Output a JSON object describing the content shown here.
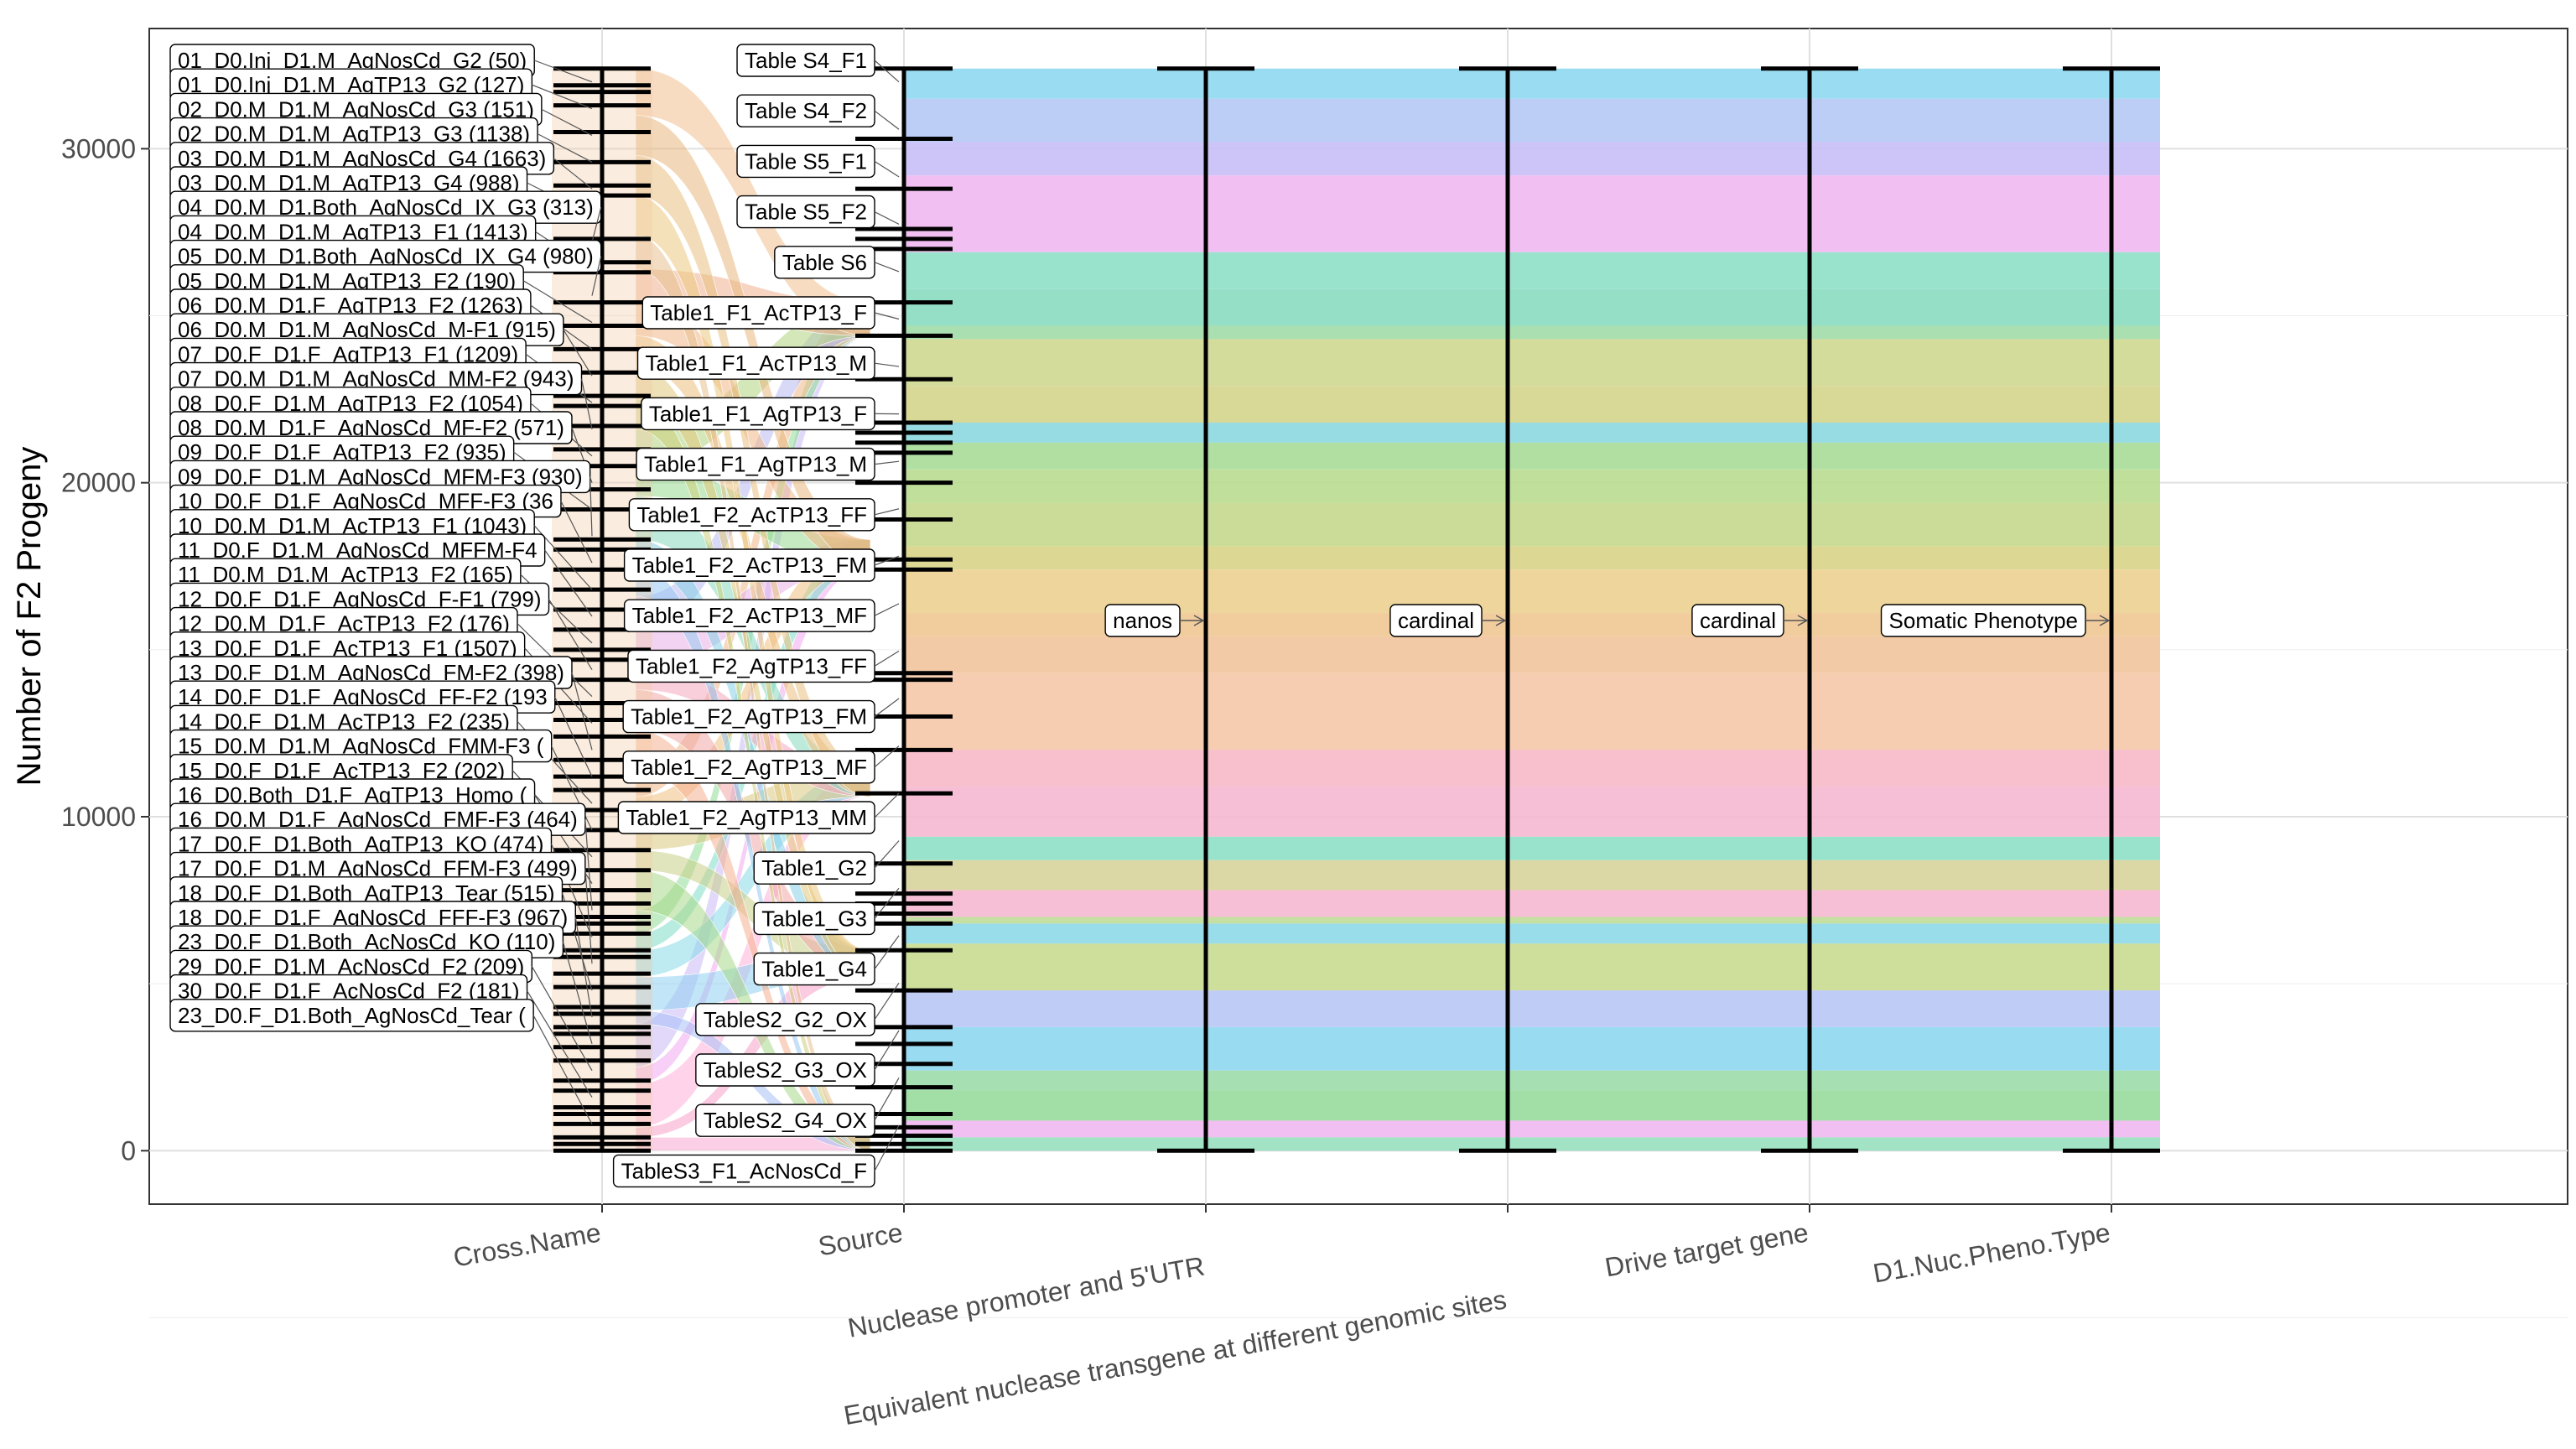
{
  "chart_data": {
    "type": "alluvial",
    "title": "",
    "ylabel": "Number of F2 Progeny",
    "ylim": [
      -1600,
      33600
    ],
    "yticks": [
      0,
      10000,
      20000,
      30000
    ],
    "grid": true,
    "axes": [
      "Cross.Name",
      "Source",
      "Nuclease promoter and 5'UTR",
      "Equivalent nuclease transgene at different genomic sites",
      "Drive target gene",
      "D1.Nuc.Pheno.Type"
    ],
    "cross_name_labels": [
      "01_D0.Inj_D1.M_AgNosCd_G2 (50)",
      "01_D0.Inj_D1.M_AgTP13_G2 (127)",
      "02_D0.M_D1.M_AgNosCd_G3 (151)",
      "02_D0.M_D1.M_AgTP13_G3 (1138)",
      "03_D0.M_D1.M_AgNosCd_G4 (1663)",
      "03_D0.M_D1.M_AgTP13_G4 (988)",
      "04_D0.M_D1.Both_AgNosCd_IX_G3 (313)",
      "04_D0.M_D1.M_AgTP13_F1 (1413)",
      "05_D0.M_D1.Both_AgNosCd_IX_G4 (980)",
      "05_D0.M_D1.M_AgTP13_F2 (190)",
      "06_D0.M_D1.F_AgTP13_F2 (1263)",
      "06_D0.M_D1.M_AgNosCd_M-F1 (915)",
      "07_D0.F_D1.F_AgTP13_F1 (1209)",
      "07_D0.M_D1.M_AgNosCd_MM-F2 (943)",
      "08_D0.F_D1.M_AgTP13_F2 (1054)",
      "08_D0.M_D1.F_AgNosCd_MF-F2 (571)",
      "09_D0.F_D1.F_AgTP13_F2 (935)",
      "09_D0.F_D1.M_AgNosCd_MFM-F3 (930)",
      "10_D0.F_D1.F_AgNosCd_MFF-F3 (36",
      "10_D0.M_D1.M_AcTP13_F1 (1043)",
      "11_D0.F_D1.M_AgNosCd_MFFM-F4",
      "11_D0.M_D1.M_AcTP13_F2 (165)",
      "12_D0.F_D1.F_AgNosCd_F-F1 (799)",
      "12_D0.M_D1.F_AcTP13_F2 (176)",
      "13_D0.F_D1.F_AcTP13_F1 (1507)",
      "13_D0.F_D1.M_AgNosCd_FM-F2 (398)",
      "14_D0.F_D1.F_AgNosCd_FF-F2 (193",
      "14_D0.F_D1.M_AcTP13_F2 (235)",
      "15_D0.M_D1.M_AgNosCd_FMM-F3 (",
      "15_D0.F_D1.F_AcTP13_F2 (202)",
      "16_D0.Both_D1.F_AgTP13_Homo (",
      "16_D0.M_D1.F_AgNosCd_FMF-F3 (464)",
      "17_D0.F_D1.Both_AgTP13_KO (474)",
      "17_D0.F_D1.M_AgNosCd_FFM-F3 (499)",
      "18_D0.F_D1.Both_AgTP13_Tear (515)",
      "18_D0.F_D1.F_AgNosCd_FFF-F3 (967)",
      "23_D0.F_D1.Both_AcNosCd_KO (110)",
      "29_D0.F_D1.M_AcNosCd_F2 (209)",
      "30_D0.F_D1.F_AcNosCd_F2 (181)",
      "23_D0.F_D1.Both_AgNosCd_Tear ("
    ],
    "source_labels": [
      "Table S4_F1",
      "Table S4_F2",
      "Table S5_F1",
      "Table S5_F2",
      "Table S6",
      "Table1_F1_AcTP13_F",
      "Table1_F1_AcTP13_M",
      "Table1_F1_AgTP13_F",
      "Table1_F1_AgTP13_M",
      "Table1_F2_AcTP13_FF",
      "Table1_F2_AcTP13_FM",
      "Table1_F2_AcTP13_MF",
      "Table1_F2_AgTP13_FF",
      "Table1_F2_AgTP13_FM",
      "Table1_F2_AgTP13_MF",
      "Table1_F2_AgTP13_MM",
      "Table1_G2",
      "Table1_G3",
      "Table1_G4",
      "TableS2_G2_OX",
      "TableS2_G3_OX",
      "TableS2_G4_OX",
      "TableS3_F1_AcNosCd_F"
    ],
    "single_stratum_labels": [
      "nanos",
      "cardinal",
      "cardinal",
      "Somatic Phenotype"
    ],
    "total": 32400,
    "bands": [
      {
        "from": 31500,
        "to": 32400,
        "color": "#8fd8f0"
      },
      {
        "from": 30200,
        "to": 31500,
        "color": "#b5c8f5"
      },
      {
        "from": 29200,
        "to": 30200,
        "color": "#c8bef7"
      },
      {
        "from": 26900,
        "to": 29200,
        "color": "#f0b8f0"
      },
      {
        "from": 25800,
        "to": 26900,
        "color": "#8ee0c8"
      },
      {
        "from": 24700,
        "to": 25800,
        "color": "#88dcc0"
      },
      {
        "from": 24300,
        "to": 24700,
        "color": "#a0dca8"
      },
      {
        "from": 22900,
        "to": 24300,
        "color": "#cfd890"
      },
      {
        "from": 21800,
        "to": 22900,
        "color": "#d4d48c"
      },
      {
        "from": 21200,
        "to": 21800,
        "color": "#8cd8e0"
      },
      {
        "from": 20400,
        "to": 21200,
        "color": "#a8dc98"
      },
      {
        "from": 19400,
        "to": 20400,
        "color": "#b8dc90"
      },
      {
        "from": 18100,
        "to": 19400,
        "color": "#c4d88c"
      },
      {
        "from": 17400,
        "to": 18100,
        "color": "#d8d488"
      },
      {
        "from": 16100,
        "to": 17400,
        "color": "#ecd090"
      },
      {
        "from": 15400,
        "to": 16100,
        "color": "#f0c894"
      },
      {
        "from": 14300,
        "to": 15400,
        "color": "#f2c49c"
      },
      {
        "from": 12000,
        "to": 14300,
        "color": "#f5c8a8"
      },
      {
        "from": 10900,
        "to": 12000,
        "color": "#f7b8c8"
      },
      {
        "from": 9400,
        "to": 10900,
        "color": "#f5b8d0"
      },
      {
        "from": 8700,
        "to": 9400,
        "color": "#8ee0c8"
      },
      {
        "from": 7800,
        "to": 8700,
        "color": "#d8d49c"
      },
      {
        "from": 7000,
        "to": 7800,
        "color": "#f5b8d0"
      },
      {
        "from": 6800,
        "to": 7000,
        "color": "#c0dc98"
      },
      {
        "from": 6200,
        "to": 6800,
        "color": "#8ed8e8"
      },
      {
        "from": 4800,
        "to": 6200,
        "color": "#c8dc90"
      },
      {
        "from": 3700,
        "to": 4800,
        "color": "#b8c8f5"
      },
      {
        "from": 2400,
        "to": 3700,
        "color": "#8ed8f0"
      },
      {
        "from": 1800,
        "to": 2400,
        "color": "#9cdca8"
      },
      {
        "from": 900,
        "to": 1800,
        "color": "#98dc9c"
      },
      {
        "from": 400,
        "to": 900,
        "color": "#f0b8f0"
      },
      {
        "from": 0,
        "to": 400,
        "color": "#98e0c0"
      }
    ]
  }
}
